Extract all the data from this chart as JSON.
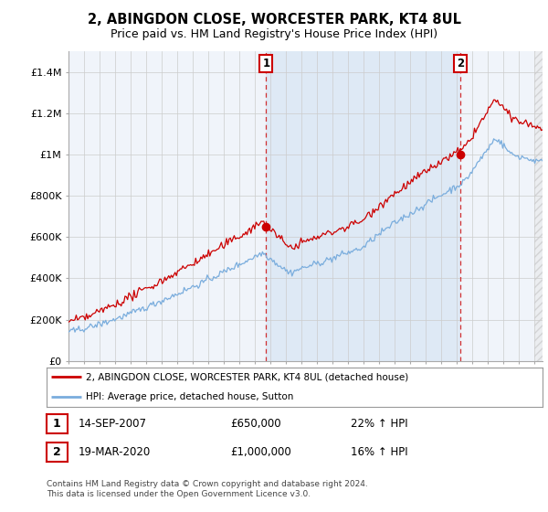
{
  "title": "2, ABINGDON CLOSE, WORCESTER PARK, KT4 8UL",
  "subtitle": "Price paid vs. HM Land Registry's House Price Index (HPI)",
  "title_fontsize": 10.5,
  "subtitle_fontsize": 9,
  "ylabel_ticks": [
    "£0",
    "£200K",
    "£400K",
    "£600K",
    "£800K",
    "£1M",
    "£1.2M",
    "£1.4M"
  ],
  "ytick_values": [
    0,
    200000,
    400000,
    600000,
    800000,
    1000000,
    1200000,
    1400000
  ],
  "ylim": [
    0,
    1500000
  ],
  "background_color": "#ffffff",
  "plot_bg_color": "#f0f4fa",
  "grid_color": "#cccccc",
  "sale_color": "#cc0000",
  "hpi_color": "#7aaddd",
  "shade_color": "#dce8f5",
  "hatch_color": "#cccccc",
  "marker1_x_year": 2007.71,
  "marker1_y": 650000,
  "marker2_x_year": 2020.21,
  "marker2_y": 1000000,
  "legend_sale_label": "2, ABINGDON CLOSE, WORCESTER PARK, KT4 8UL (detached house)",
  "legend_hpi_label": "HPI: Average price, detached house, Sutton",
  "table_rows": [
    [
      "1",
      "14-SEP-2007",
      "£650,000",
      "22% ↑ HPI"
    ],
    [
      "2",
      "19-MAR-2020",
      "£1,000,000",
      "16% ↑ HPI"
    ]
  ],
  "footnote": "Contains HM Land Registry data © Crown copyright and database right 2024.\nThis data is licensed under the Open Government Licence v3.0.",
  "xmin": 1995.0,
  "xmax": 2025.5,
  "sale_color_box": "#cc0000"
}
